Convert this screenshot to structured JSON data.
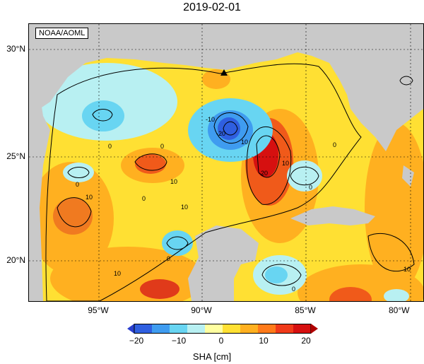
{
  "title": "2019-02-01",
  "credit": "NOAA/AOML",
  "lat_labels": [
    "30°N",
    "25°N",
    "20°N"
  ],
  "lon_labels": [
    "95°W",
    "90°W",
    "85°W",
    "80°W"
  ],
  "colorbar": {
    "ticks": [
      "−20",
      "−10",
      "0",
      "10",
      "20"
    ],
    "label": "SHA [cm]",
    "colors": [
      "#2f5fe0",
      "#3f9cf0",
      "#68d5f2",
      "#b8f0f2",
      "#ffffa0",
      "#ffe033",
      "#ffb020",
      "#ff7a1a",
      "#f03a1a",
      "#d61010"
    ]
  },
  "contour_labels": [
    "0",
    "0",
    "0",
    "0",
    "0",
    "0",
    "0",
    "0",
    "10",
    "10",
    "10",
    "10",
    "10",
    "10",
    "10",
    "-10",
    "-20",
    "-20"
  ],
  "marker": "triangle-marker"
}
